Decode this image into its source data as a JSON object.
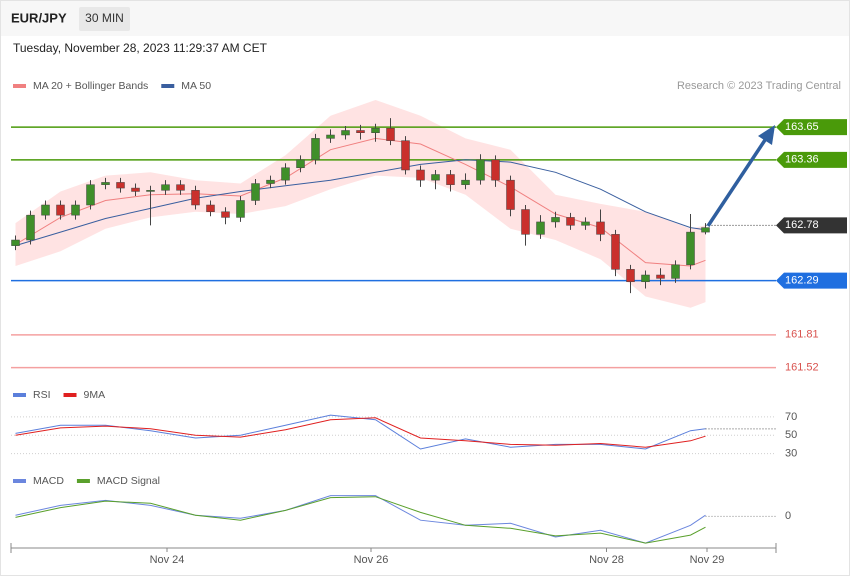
{
  "header": {
    "symbol": "EUR/JPY",
    "interval": "30 MIN",
    "timestamp": "Tuesday, November 28, 2023 11:29:37 AM CET"
  },
  "chart_data": [
    {
      "type": "candlestick",
      "source": "Research © 2023 Trading Central",
      "xlim": [
        -0.3,
        50.7
      ],
      "xticks": [
        {
          "value": 10.1,
          "label": "Nov 24"
        },
        {
          "value": 23.7,
          "label": "Nov 26"
        },
        {
          "value": 39.4,
          "label": "Nov 28"
        },
        {
          "value": 46.1,
          "label": "Nov 29"
        }
      ],
      "ylim": [
        161.41,
        163.89
      ],
      "up_color": "#3f8f2a",
      "down_color": "#c9302c",
      "x": [
        0,
        1,
        2,
        3,
        4,
        5,
        6,
        7,
        8,
        9,
        10,
        11,
        12,
        13,
        14,
        15,
        16,
        17,
        18,
        19,
        20,
        21,
        22,
        23,
        24,
        25,
        26,
        27,
        28,
        29,
        30,
        31,
        32,
        33,
        34,
        35,
        36,
        37,
        38,
        39,
        40,
        41,
        42,
        43,
        44,
        45,
        46
      ],
      "open": [
        162.6,
        162.65,
        162.87,
        162.96,
        162.87,
        162.96,
        163.14,
        163.16,
        163.11,
        163.08,
        163.09,
        163.14,
        163.09,
        162.96,
        162.9,
        162.85,
        163.0,
        163.15,
        163.18,
        163.29,
        163.36,
        163.55,
        163.58,
        163.62,
        163.6,
        163.64,
        163.53,
        163.27,
        163.18,
        163.23,
        163.14,
        163.18,
        163.36,
        163.18,
        162.92,
        162.7,
        162.81,
        162.85,
        162.78,
        162.81,
        162.7,
        162.39,
        162.28,
        162.34,
        162.31,
        162.43,
        162.72
      ],
      "high": [
        162.69,
        162.91,
        163.0,
        163.0,
        163.0,
        163.18,
        163.2,
        163.2,
        163.15,
        163.13,
        163.18,
        163.18,
        163.13,
        163.0,
        162.94,
        163.04,
        163.19,
        163.22,
        163.33,
        163.4,
        163.59,
        163.63,
        163.66,
        163.67,
        163.68,
        163.73,
        163.57,
        163.31,
        163.27,
        163.27,
        163.24,
        163.41,
        163.4,
        163.22,
        162.96,
        162.87,
        162.9,
        162.89,
        162.85,
        162.92,
        162.74,
        162.43,
        162.38,
        162.4,
        162.47,
        162.88,
        162.8
      ],
      "low": [
        162.56,
        162.61,
        162.83,
        162.83,
        162.83,
        162.92,
        163.1,
        163.07,
        163.04,
        162.78,
        163.05,
        163.05,
        162.92,
        162.86,
        162.79,
        162.81,
        162.96,
        163.11,
        163.14,
        163.25,
        163.32,
        163.51,
        163.54,
        163.54,
        163.52,
        163.49,
        163.23,
        163.12,
        163.1,
        163.08,
        163.1,
        163.14,
        163.12,
        162.86,
        162.6,
        162.66,
        162.76,
        162.74,
        162.74,
        162.64,
        162.33,
        162.18,
        162.22,
        162.25,
        162.27,
        162.39,
        162.7
      ],
      "close": [
        162.65,
        162.87,
        162.96,
        162.87,
        162.96,
        163.14,
        163.16,
        163.11,
        163.08,
        163.09,
        163.14,
        163.09,
        162.96,
        162.9,
        162.85,
        163.0,
        163.15,
        163.18,
        163.29,
        163.36,
        163.55,
        163.58,
        163.62,
        163.6,
        163.64,
        163.53,
        163.27,
        163.18,
        163.23,
        163.14,
        163.18,
        163.36,
        163.18,
        162.92,
        162.7,
        162.81,
        162.85,
        162.78,
        162.81,
        162.7,
        162.39,
        162.28,
        162.34,
        162.31,
        162.43,
        162.72,
        162.76
      ],
      "series": [
        {
          "name": "MA 20 + Bollinger Bands",
          "color": "#f08080",
          "band_color": "#ffdada",
          "x": [
            0,
            3,
            6,
            9,
            12,
            15,
            18,
            21,
            24,
            27,
            30,
            33,
            36,
            39,
            42,
            45,
            46
          ],
          "values": [
            162.61,
            162.85,
            163.0,
            163.05,
            163.06,
            163.04,
            163.2,
            163.45,
            163.55,
            163.5,
            163.32,
            163.12,
            162.88,
            162.76,
            162.45,
            162.42,
            162.47
          ],
          "upper": [
            162.8,
            163.08,
            163.22,
            163.25,
            163.18,
            163.15,
            163.4,
            163.75,
            163.89,
            163.75,
            163.55,
            163.45,
            163.05,
            162.97,
            162.9,
            162.75,
            162.78
          ],
          "lower": [
            162.42,
            162.55,
            162.75,
            162.85,
            162.9,
            162.88,
            162.95,
            163.1,
            163.22,
            163.2,
            163.05,
            162.75,
            162.65,
            162.48,
            162.15,
            162.05,
            162.1
          ]
        },
        {
          "name": "MA 50",
          "color": "#3a5f9f",
          "x": [
            0,
            3,
            6,
            9,
            12,
            15,
            18,
            21,
            24,
            27,
            30,
            33,
            36,
            39,
            42,
            45,
            46
          ],
          "values": [
            162.6,
            162.72,
            162.84,
            162.93,
            163.02,
            163.08,
            163.13,
            163.18,
            163.25,
            163.32,
            163.36,
            163.34,
            163.25,
            163.1,
            162.9,
            162.76,
            162.74
          ]
        }
      ],
      "levels": [
        {
          "value": 163.65,
          "color": "#4a9a0a",
          "style": "solid",
          "tag": true
        },
        {
          "value": 163.36,
          "color": "#4a9a0a",
          "style": "solid",
          "tag": true
        },
        {
          "value": 162.78,
          "color": "#333333",
          "style": "dotted",
          "tag": true
        },
        {
          "value": 162.29,
          "color": "#1f6fe0",
          "style": "solid",
          "tag": true
        },
        {
          "value": 161.81,
          "color": "#f4a0a0",
          "style": "solid",
          "tag": false
        },
        {
          "value": 161.52,
          "color": "#f4a0a0",
          "style": "solid",
          "tag": false
        }
      ]
    },
    {
      "type": "line",
      "ylim": [
        23,
        83
      ],
      "yticks": [
        70,
        50,
        30
      ],
      "series": [
        {
          "name": "RSI",
          "color": "#5b7fdb",
          "x": [
            0,
            3,
            6,
            9,
            12,
            15,
            18,
            21,
            24,
            27,
            30,
            33,
            36,
            39,
            42,
            45,
            46
          ],
          "values": [
            52,
            61,
            61,
            55,
            47,
            50,
            61,
            72,
            67,
            35,
            46,
            37,
            40,
            40,
            35,
            55,
            57
          ]
        },
        {
          "name": "9MA",
          "color": "#e02020",
          "x": [
            0,
            3,
            6,
            9,
            12,
            15,
            18,
            21,
            24,
            27,
            30,
            33,
            36,
            39,
            42,
            45,
            46
          ],
          "values": [
            50,
            58,
            60,
            57,
            50,
            48,
            56,
            67,
            69,
            47,
            44,
            40,
            39,
            41,
            37,
            44,
            49
          ]
        }
      ]
    },
    {
      "type": "line",
      "ylim": [
        -0.15,
        0.13
      ],
      "yticks": [
        0
      ],
      "series": [
        {
          "name": "MACD",
          "color": "#6b86de",
          "x": [
            0,
            3,
            6,
            9,
            12,
            15,
            18,
            21,
            24,
            27,
            30,
            33,
            36,
            39,
            42,
            45,
            46
          ],
          "values": [
            0.005,
            0.05,
            0.073,
            0.05,
            0.005,
            -0.009,
            0.027,
            0.095,
            0.095,
            -0.018,
            -0.041,
            -0.032,
            -0.095,
            -0.064,
            -0.123,
            -0.041,
            0.005
          ]
        },
        {
          "name": "MACD Signal",
          "color": "#5aa02c",
          "x": [
            0,
            3,
            6,
            9,
            12,
            15,
            18,
            21,
            24,
            27,
            30,
            33,
            36,
            39,
            42,
            45,
            46
          ],
          "values": [
            -0.005,
            0.04,
            0.07,
            0.06,
            0.005,
            -0.018,
            0.027,
            0.086,
            0.09,
            0.018,
            -0.041,
            -0.055,
            -0.09,
            -0.077,
            -0.123,
            -0.086,
            -0.05
          ]
        }
      ]
    }
  ]
}
